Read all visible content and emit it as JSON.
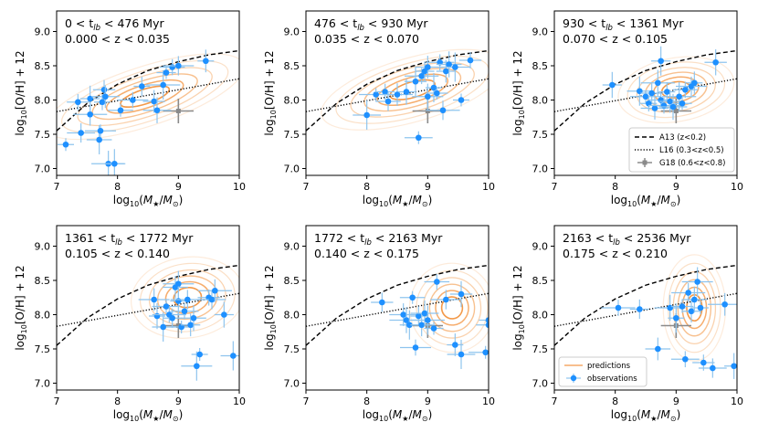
{
  "chart_data": {
    "type": "scatter",
    "xlabel": "log10(M★/M⊙)",
    "ylabel": "log10[O/H] + 12",
    "xlim": [
      7,
      10
    ],
    "ylim": [
      6.9,
      9.3
    ],
    "xticks": [
      "7",
      "8",
      "9",
      "10"
    ],
    "yticks": [
      "7.0",
      "7.5",
      "8.0",
      "8.5",
      "9.0"
    ],
    "models": {
      "A13": {
        "label": "A13 (z<0.2)",
        "style": "dashed",
        "x": [
          7.0,
          7.5,
          8.0,
          8.5,
          9.0,
          9.5,
          10.0
        ],
        "y": [
          7.55,
          7.95,
          8.23,
          8.43,
          8.56,
          8.66,
          8.72
        ]
      },
      "L16": {
        "label": "L16 (0.3<z<0.5)",
        "style": "dotted",
        "x": [
          7.0,
          7.5,
          8.0,
          8.5,
          9.0,
          9.5,
          10.0
        ],
        "y": [
          7.83,
          7.91,
          7.99,
          8.07,
          8.15,
          8.23,
          8.31
        ]
      },
      "G18": {
        "label": "G18 (0.6<z<0.8)",
        "x": 9.0,
        "y": 7.84,
        "xerr": 0.25,
        "yerr": 0.18,
        "color": "#8a8a8a"
      }
    },
    "legend_labels": {
      "predictions": "predictions",
      "observations": "observations"
    },
    "panels": [
      {
        "annotation_line1_parts": [
          "0 < t",
          "lb",
          " < 476 Myr"
        ],
        "annotation_line2": "0.000 < z < 0.035",
        "contour": {
          "cx": 8.45,
          "cy": 8.05,
          "rx": 1.1,
          "ry": 0.28,
          "angle_deg": 18
        },
        "observations": [
          {
            "x": 7.15,
            "y": 7.35
          },
          {
            "x": 7.35,
            "y": 7.97
          },
          {
            "x": 7.4,
            "y": 7.52
          },
          {
            "x": 7.55,
            "y": 7.79
          },
          {
            "x": 7.55,
            "y": 8.02
          },
          {
            "x": 7.7,
            "y": 7.42
          },
          {
            "x": 7.72,
            "y": 7.55
          },
          {
            "x": 7.75,
            "y": 7.97
          },
          {
            "x": 7.78,
            "y": 8.15
          },
          {
            "x": 7.8,
            "y": 8.05
          },
          {
            "x": 7.85,
            "y": 7.07
          },
          {
            "x": 7.95,
            "y": 7.07
          },
          {
            "x": 8.05,
            "y": 7.85
          },
          {
            "x": 8.25,
            "y": 8.0
          },
          {
            "x": 8.4,
            "y": 8.2
          },
          {
            "x": 8.6,
            "y": 7.98
          },
          {
            "x": 8.65,
            "y": 7.85
          },
          {
            "x": 8.75,
            "y": 8.22
          },
          {
            "x": 8.8,
            "y": 8.4
          },
          {
            "x": 8.9,
            "y": 8.48
          },
          {
            "x": 9.0,
            "y": 8.5
          },
          {
            "x": 9.45,
            "y": 8.57
          }
        ]
      },
      {
        "annotation_line1_parts": [
          "476 < t",
          "lb",
          " < 930 Myr"
        ],
        "annotation_line2": "0.035 < z < 0.070",
        "contour": {
          "cx": 8.75,
          "cy": 8.15,
          "rx": 1.0,
          "ry": 0.3,
          "angle_deg": 16
        },
        "observations": [
          {
            "x": 8.0,
            "y": 7.78
          },
          {
            "x": 8.15,
            "y": 8.08
          },
          {
            "x": 8.3,
            "y": 8.12
          },
          {
            "x": 8.35,
            "y": 7.98
          },
          {
            "x": 8.5,
            "y": 8.08
          },
          {
            "x": 8.65,
            "y": 8.12
          },
          {
            "x": 8.8,
            "y": 8.27
          },
          {
            "x": 8.85,
            "y": 7.45
          },
          {
            "x": 8.9,
            "y": 8.35
          },
          {
            "x": 8.95,
            "y": 8.42
          },
          {
            "x": 9.0,
            "y": 8.48
          },
          {
            "x": 9.0,
            "y": 8.05
          },
          {
            "x": 9.1,
            "y": 8.18
          },
          {
            "x": 9.15,
            "y": 8.1
          },
          {
            "x": 9.2,
            "y": 8.55
          },
          {
            "x": 9.25,
            "y": 7.85
          },
          {
            "x": 9.3,
            "y": 8.42
          },
          {
            "x": 9.35,
            "y": 8.52
          },
          {
            "x": 9.45,
            "y": 8.48
          },
          {
            "x": 9.55,
            "y": 8.0
          },
          {
            "x": 9.7,
            "y": 8.58
          }
        ]
      },
      {
        "annotation_line1_parts": [
          "930 < t",
          "lb",
          " < 1361 Myr"
        ],
        "annotation_line2": "0.070 < z < 0.105",
        "contour": {
          "cx": 9.0,
          "cy": 8.15,
          "rx": 0.62,
          "ry": 0.3,
          "angle_deg": 10
        },
        "observations": [
          {
            "x": 7.95,
            "y": 8.22
          },
          {
            "x": 8.4,
            "y": 8.13
          },
          {
            "x": 8.5,
            "y": 8.05
          },
          {
            "x": 8.55,
            "y": 7.95
          },
          {
            "x": 8.6,
            "y": 8.1
          },
          {
            "x": 8.65,
            "y": 7.88
          },
          {
            "x": 8.7,
            "y": 8.25
          },
          {
            "x": 8.75,
            "y": 8.57
          },
          {
            "x": 8.75,
            "y": 8.0
          },
          {
            "x": 8.8,
            "y": 7.92
          },
          {
            "x": 8.85,
            "y": 8.12
          },
          {
            "x": 8.9,
            "y": 7.98
          },
          {
            "x": 8.95,
            "y": 7.9
          },
          {
            "x": 9.05,
            "y": 8.05
          },
          {
            "x": 9.1,
            "y": 7.95
          },
          {
            "x": 9.15,
            "y": 8.15
          },
          {
            "x": 9.25,
            "y": 8.2
          },
          {
            "x": 9.3,
            "y": 8.25
          },
          {
            "x": 9.65,
            "y": 8.55
          }
        ]
      },
      {
        "annotation_line1_parts": [
          "1361 < t",
          "lb",
          " < 1772 Myr"
        ],
        "annotation_line2": "0.105 < z < 0.140",
        "contour": {
          "cx": 9.15,
          "cy": 8.25,
          "rx": 0.6,
          "ry": 0.38,
          "angle_deg": 8
        },
        "observations": [
          {
            "x": 8.6,
            "y": 8.22
          },
          {
            "x": 8.65,
            "y": 7.98
          },
          {
            "x": 8.75,
            "y": 7.82
          },
          {
            "x": 8.8,
            "y": 8.12
          },
          {
            "x": 8.85,
            "y": 8.0
          },
          {
            "x": 8.9,
            "y": 7.95
          },
          {
            "x": 8.95,
            "y": 8.4
          },
          {
            "x": 9.0,
            "y": 8.45
          },
          {
            "x": 9.0,
            "y": 8.2
          },
          {
            "x": 9.05,
            "y": 7.82
          },
          {
            "x": 9.1,
            "y": 8.05
          },
          {
            "x": 9.15,
            "y": 8.22
          },
          {
            "x": 9.2,
            "y": 7.85
          },
          {
            "x": 9.25,
            "y": 7.95
          },
          {
            "x": 9.3,
            "y": 7.25
          },
          {
            "x": 9.35,
            "y": 7.42
          },
          {
            "x": 9.5,
            "y": 8.25
          },
          {
            "x": 9.55,
            "y": 8.22
          },
          {
            "x": 9.6,
            "y": 8.35
          },
          {
            "x": 9.75,
            "y": 8.0
          },
          {
            "x": 9.9,
            "y": 7.4
          }
        ]
      },
      {
        "annotation_line1_parts": [
          "1772 < t",
          "lb",
          " < 2163 Myr"
        ],
        "annotation_line2": "0.140 < z < 0.175",
        "contour": {
          "cx": 9.4,
          "cy": 8.1,
          "rx": 0.45,
          "ry": 0.42,
          "angle_deg": 5
        },
        "observations": [
          {
            "x": 8.25,
            "y": 8.18
          },
          {
            "x": 8.6,
            "y": 8.0
          },
          {
            "x": 8.65,
            "y": 7.92
          },
          {
            "x": 8.7,
            "y": 7.85
          },
          {
            "x": 8.75,
            "y": 8.25
          },
          {
            "x": 8.8,
            "y": 7.52
          },
          {
            "x": 8.85,
            "y": 7.98
          },
          {
            "x": 8.9,
            "y": 7.85
          },
          {
            "x": 8.95,
            "y": 8.02
          },
          {
            "x": 9.0,
            "y": 7.92
          },
          {
            "x": 9.1,
            "y": 7.8
          },
          {
            "x": 9.15,
            "y": 8.48
          },
          {
            "x": 9.3,
            "y": 8.22
          },
          {
            "x": 9.45,
            "y": 7.56
          },
          {
            "x": 9.55,
            "y": 8.3
          },
          {
            "x": 9.55,
            "y": 7.42
          },
          {
            "x": 9.95,
            "y": 7.45
          },
          {
            "x": 10.0,
            "y": 7.92
          },
          {
            "x": 10.0,
            "y": 7.85
          }
        ]
      },
      {
        "annotation_line1_parts": [
          "2163 < t",
          "lb",
          " < 2536 Myr"
        ],
        "annotation_line2": "0.175 < z < 0.210",
        "contour": {
          "cx": 9.3,
          "cy": 8.1,
          "rx": 0.33,
          "ry": 0.5,
          "angle_deg": 0
        },
        "observations": [
          {
            "x": 8.05,
            "y": 8.1
          },
          {
            "x": 8.4,
            "y": 8.08
          },
          {
            "x": 8.7,
            "y": 7.5
          },
          {
            "x": 8.9,
            "y": 8.1
          },
          {
            "x": 9.0,
            "y": 7.95
          },
          {
            "x": 9.1,
            "y": 8.12
          },
          {
            "x": 9.15,
            "y": 7.35
          },
          {
            "x": 9.2,
            "y": 8.32
          },
          {
            "x": 9.25,
            "y": 8.05
          },
          {
            "x": 9.3,
            "y": 8.22
          },
          {
            "x": 9.35,
            "y": 8.48
          },
          {
            "x": 9.4,
            "y": 8.1
          },
          {
            "x": 9.45,
            "y": 7.3
          },
          {
            "x": 9.6,
            "y": 7.22
          },
          {
            "x": 9.8,
            "y": 8.15
          },
          {
            "x": 9.95,
            "y": 7.25
          }
        ]
      }
    ]
  }
}
